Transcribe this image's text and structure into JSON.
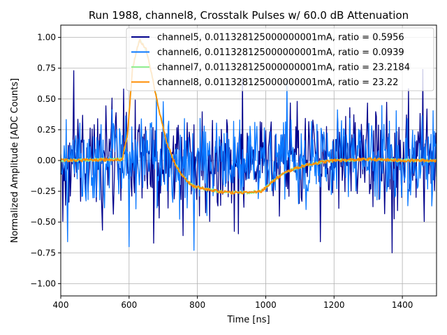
{
  "chart_data": {
    "type": "line",
    "title": "Run 1988, channel8, Crosstalk Pulses w/ 60.0 dB Attenuation",
    "xlabel": "Time [ns]",
    "ylabel": "Normalized Amplitude [ADC Counts]",
    "xlim": [
      400,
      1500
    ],
    "ylim": [
      -1.1,
      1.1
    ],
    "xticks": [
      400,
      600,
      800,
      1000,
      1200,
      1400
    ],
    "yticks": [
      -1.0,
      -0.75,
      -0.5,
      -0.25,
      0.0,
      0.25,
      0.5,
      0.75,
      1.0
    ],
    "ytick_labels": [
      "−1.00",
      "−0.75",
      "−0.50",
      "−0.25",
      "0.00",
      "0.25",
      "0.50",
      "0.75",
      "1.00"
    ],
    "grid": true,
    "legend_position": "top-right",
    "series": [
      {
        "name": "channel5, 0.011328125000000001mA, ratio = 0.5956",
        "color": "#00008b",
        "kind": "noise",
        "x_range": [
          400,
          1500
        ],
        "noise_amplitude": 0.38,
        "peaks": [
          [
            438,
            0.73
          ],
          [
            1460,
            0.74
          ],
          [
            1369,
            -0.75
          ]
        ]
      },
      {
        "name": "channel6, 0.011328125000000001mA, ratio = 0.0939",
        "color": "#0a78ff",
        "kind": "noise",
        "x_range": [
          400,
          1500
        ],
        "noise_amplitude": 0.34,
        "peaks": [
          [
            420,
            -0.66
          ],
          [
            790,
            -0.73
          ],
          [
            600,
            -0.7
          ]
        ]
      },
      {
        "name": "channel7, 0.011328125000000001mA, ratio = 23.2184",
        "color": "#90ee90",
        "kind": "pulse",
        "x": [
          400,
          580,
          595,
          610,
          630,
          650,
          670,
          690,
          710,
          730,
          750,
          770,
          790,
          820,
          860,
          900,
          950,
          985,
          1000,
          1020,
          1050,
          1080,
          1120,
          1160,
          1200,
          1300,
          1400,
          1500
        ],
        "values": [
          0.0,
          0.01,
          0.2,
          0.75,
          0.98,
          0.9,
          0.65,
          0.38,
          0.15,
          0.0,
          -0.1,
          -0.17,
          -0.21,
          -0.23,
          -0.25,
          -0.26,
          -0.26,
          -0.25,
          -0.22,
          -0.17,
          -0.11,
          -0.07,
          -0.035,
          -0.015,
          0.0,
          0.01,
          0.0,
          0.0
        ]
      },
      {
        "name": "channel8, 0.011328125000000001mA, ratio = 23.22",
        "color": "#ff8c00",
        "kind": "pulse",
        "x": [
          400,
          580,
          595,
          610,
          630,
          650,
          670,
          690,
          710,
          730,
          750,
          770,
          790,
          820,
          860,
          900,
          950,
          985,
          1000,
          1020,
          1050,
          1080,
          1120,
          1160,
          1200,
          1300,
          1400,
          1500
        ],
        "values": [
          0.0,
          0.01,
          0.2,
          0.75,
          0.98,
          0.9,
          0.65,
          0.38,
          0.15,
          0.0,
          -0.1,
          -0.17,
          -0.21,
          -0.23,
          -0.25,
          -0.26,
          -0.26,
          -0.25,
          -0.22,
          -0.17,
          -0.11,
          -0.07,
          -0.035,
          -0.015,
          0.0,
          0.01,
          0.0,
          0.0
        ]
      }
    ]
  }
}
